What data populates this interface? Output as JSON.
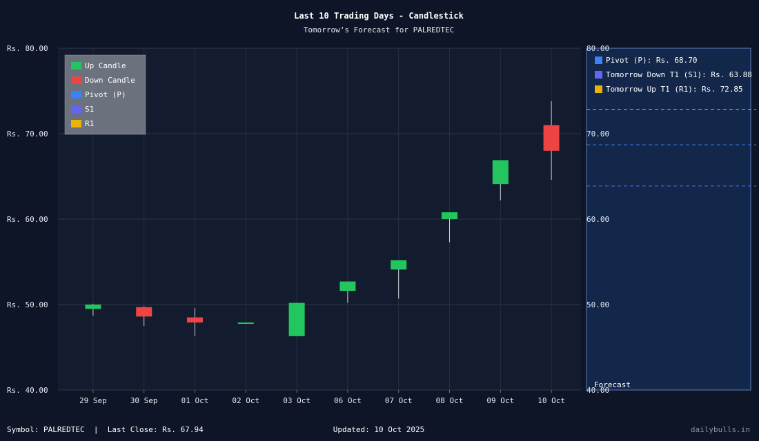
{
  "chart_data": {
    "type": "candlestick",
    "title": "Last 10 Trading Days - Candlestick",
    "subtitle": "Tomorrow’s Forecast for PALREDTEC",
    "categories": [
      "29 Sep",
      "30 Sep",
      "01 Oct",
      "02 Oct",
      "03 Oct",
      "06 Oct",
      "07 Oct",
      "08 Oct",
      "09 Oct",
      "10 Oct"
    ],
    "candles": [
      {
        "open": 49.5,
        "close": 50.0,
        "high": 50.1,
        "low": 48.7
      },
      {
        "open": 49.7,
        "close": 48.6,
        "high": 49.8,
        "low": 47.5
      },
      {
        "open": 48.5,
        "close": 47.9,
        "high": 49.6,
        "low": 46.3
      },
      {
        "open": 47.8,
        "close": 47.9,
        "high": 47.9,
        "low": 47.8
      },
      {
        "open": 46.3,
        "close": 50.2,
        "high": 50.2,
        "low": 46.3
      },
      {
        "open": 51.6,
        "close": 52.7,
        "high": 52.7,
        "low": 50.2
      },
      {
        "open": 54.1,
        "close": 55.2,
        "high": 55.2,
        "low": 50.7
      },
      {
        "open": 60.0,
        "close": 60.8,
        "high": 60.8,
        "low": 57.3
      },
      {
        "open": 64.1,
        "close": 66.9,
        "high": 66.9,
        "low": 62.2
      },
      {
        "open": 71.0,
        "close": 68.0,
        "high": 73.8,
        "low": 64.6
      }
    ],
    "ylim": [
      40,
      80
    ],
    "y_ticks": [
      80,
      70,
      60,
      50,
      40
    ],
    "y_tick_prefix": "Rs. ",
    "right_ticks": [
      80,
      70,
      60,
      50,
      40
    ],
    "grid": true,
    "legend_position": "top-left",
    "legend": [
      {
        "label": "Up Candle",
        "color": "#22c55e"
      },
      {
        "label": "Down Candle",
        "color": "#ef4444"
      },
      {
        "label": "Pivot (P)",
        "color": "#3b82f6"
      },
      {
        "label": "S1",
        "color": "#6366f1"
      },
      {
        "label": "R1",
        "color": "#eab308"
      }
    ],
    "forecast": {
      "label": "Forecast",
      "pivot": 68.7,
      "s1": 63.88,
      "r1": 72.85,
      "legend": [
        {
          "label": "Pivot (P): Rs. 68.70",
          "color": "#3b82f6"
        },
        {
          "label": "Tomorrow Down T1 (S1): Rs. 63.88",
          "color": "#6366f1"
        },
        {
          "label": "Tomorrow Up T1 (R1): Rs. 72.85",
          "color": "#eab308"
        }
      ]
    },
    "colors": {
      "up": "#22c55e",
      "down": "#ef4444",
      "pivot": "#3b82f6",
      "s1": "#6366f1",
      "r1": "#eab308"
    }
  },
  "footer": {
    "left": "Symbol: PALREDTEC  |  Last Close: Rs. 67.94",
    "center": "Updated: 10 Oct 2025",
    "right": "dailybulls.in"
  }
}
